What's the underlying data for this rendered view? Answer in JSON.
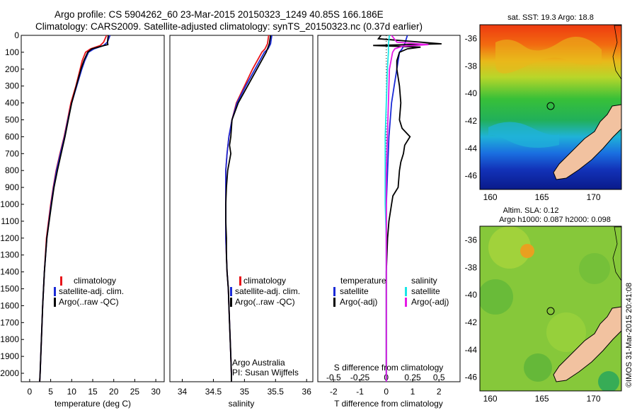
{
  "header": {
    "line1": "Argo profile: CS 5904262_60 23-Mar-2015 20150323_1249 40.85S 166.186E",
    "line2": "Climatology: CARS2009. Satellite-adjusted climatology: synTS_20150323.nc (0.37d earlier)"
  },
  "colors": {
    "climatology": "#e8141a",
    "satellite": "#1a2ad6",
    "argo": "#000000",
    "sat_salinity": "#19e6e6",
    "argo_adj_salinity": "#e619e6",
    "land": "#f2c2a0"
  },
  "chart_data": [
    {
      "type": "line",
      "id": "temperature",
      "xlabel": "temperature (deg C)",
      "xticks": [
        "0",
        "5",
        "10",
        "15",
        "20",
        "25",
        "30"
      ],
      "xlim": [
        -2,
        32
      ],
      "ylim": [
        0,
        2050
      ],
      "yticks": [
        "0",
        "100",
        "200",
        "300",
        "400",
        "500",
        "600",
        "700",
        "800",
        "900",
        "1000",
        "1100",
        "1200",
        "1300",
        "1400",
        "1500",
        "1600",
        "1700",
        "1800",
        "1900",
        "2000"
      ],
      "legend": [
        "climatology",
        "satellite-adj. clim.",
        "Argo(..raw -QC)"
      ],
      "series": [
        {
          "name": "climatology",
          "color": "#e8141a",
          "depth": [
            0,
            40,
            60,
            80,
            100,
            150,
            200,
            300,
            400,
            500,
            600,
            700,
            800,
            900,
            1000,
            1200,
            1400,
            1600,
            1800,
            2000,
            2050
          ],
          "values": [
            18.3,
            17.6,
            16.8,
            14.5,
            13.3,
            12.5,
            12,
            11,
            9.8,
            9,
            8.2,
            7.2,
            6.3,
            5.6,
            5,
            4,
            3.5,
            3.1,
            2.8,
            2.5,
            2.4
          ]
        },
        {
          "name": "satellite-adj. clim.",
          "color": "#1a2ad6",
          "depth": [
            0,
            40,
            60,
            80,
            100,
            150,
            200,
            300,
            400,
            500,
            600,
            700,
            800,
            900,
            1000,
            1200,
            1400,
            1600,
            1800,
            2000,
            2050
          ],
          "values": [
            19.1,
            18.5,
            17.6,
            15.3,
            14,
            13.1,
            12.4,
            11.2,
            10,
            9.1,
            8.3,
            7.3,
            6.4,
            5.7,
            5.1,
            4.1,
            3.5,
            3.1,
            2.8,
            2.5,
            2.4
          ]
        },
        {
          "name": "Argo(..raw -QC)",
          "color": "#000000",
          "depth": [
            0,
            40,
            55,
            60,
            80,
            100,
            150,
            200,
            300,
            400,
            500,
            600,
            700,
            800,
            900,
            1000,
            1200,
            1400,
            1600,
            1800,
            2000,
            2050
          ],
          "values": [
            18.7,
            18.5,
            18.6,
            17.8,
            14.8,
            13.8,
            12.9,
            12.2,
            11.1,
            10,
            9.2,
            8.4,
            7.5,
            6.6,
            5.8,
            5.2,
            4.1,
            3.5,
            3.1,
            2.8,
            2.5,
            2.4
          ]
        }
      ]
    },
    {
      "type": "line",
      "id": "salinity",
      "xlabel": "salinity",
      "xticks": [
        "34",
        "34.5",
        "35",
        "35.5",
        "36"
      ],
      "xlim": [
        33.8,
        36.1
      ],
      "ylim": [
        0,
        2050
      ],
      "legend": [
        "climatology",
        "satellite-adj. clim.",
        "Argo(..raw -QC)"
      ],
      "annotation": [
        "Argo Australia",
        "PI: Susan Wijffels"
      ],
      "series": [
        {
          "name": "climatology",
          "color": "#e8141a",
          "depth": [
            0,
            50,
            80,
            100,
            200,
            300,
            400,
            500,
            600,
            700,
            800,
            900,
            1000,
            1100,
            1200,
            1300,
            1400,
            1500,
            1600,
            1700,
            1800,
            1900,
            2000,
            2050
          ],
          "values": [
            35.39,
            35.37,
            35.33,
            35.28,
            35.13,
            35.0,
            34.87,
            34.8,
            34.75,
            34.72,
            34.7,
            34.7,
            34.7,
            34.7,
            34.7,
            34.71,
            34.72,
            34.74,
            34.75,
            34.76,
            34.77,
            34.78,
            34.79,
            34.79
          ]
        },
        {
          "name": "satellite-adj. clim.",
          "color": "#1a2ad6",
          "depth": [
            0,
            50,
            80,
            100,
            200,
            300,
            400,
            500,
            600,
            700,
            800,
            900,
            1000,
            1100,
            1200,
            1300,
            1400,
            1500,
            1600,
            1700,
            1800,
            1900,
            2000,
            2050
          ],
          "values": [
            35.44,
            35.42,
            35.38,
            35.32,
            35.17,
            35.02,
            34.88,
            34.8,
            34.75,
            34.72,
            34.7,
            34.7,
            34.7,
            34.7,
            34.7,
            34.71,
            34.72,
            34.74,
            34.75,
            34.76,
            34.77,
            34.78,
            34.79,
            34.79
          ]
        },
        {
          "name": "Argo(..raw -QC)",
          "color": "#000000",
          "depth": [
            0,
            50,
            80,
            100,
            200,
            300,
            400,
            500,
            600,
            650,
            700,
            800,
            900,
            1000,
            1100,
            1200,
            1300,
            1400,
            1500,
            1600,
            1700,
            1800,
            1900,
            2000,
            2050
          ],
          "values": [
            35.42,
            35.4,
            35.37,
            35.35,
            35.2,
            35.05,
            34.9,
            34.8,
            34.78,
            34.76,
            34.78,
            34.73,
            34.71,
            34.7,
            34.7,
            34.71,
            34.71,
            34.72,
            34.74,
            34.75,
            34.76,
            34.77,
            34.78,
            34.79,
            34.79
          ]
        }
      ]
    },
    {
      "type": "line",
      "id": "difference",
      "xlabel": "T difference from climatology",
      "xlabel_top": "S difference from climatology",
      "xticks": [
        "-2",
        "-1",
        "0",
        "1",
        "2"
      ],
      "xticks_top": [
        "-0.5",
        "-0.25",
        "0",
        "0.25",
        "0.5"
      ],
      "xlim": [
        -2.6,
        2.8
      ],
      "ylim": [
        0,
        2050
      ],
      "legend_temperature": [
        "temperature",
        "satellite",
        "Argo(-adj)"
      ],
      "legend_salinity": [
        "salinity",
        "satellite",
        "Argo(-adj)"
      ],
      "series": [
        {
          "name": "temperature satellite",
          "color": "#1a2ad6",
          "depth": [
            0,
            50,
            80,
            100,
            200,
            300,
            400,
            600,
            800,
            1000,
            1200,
            1400,
            1600,
            1800,
            2000,
            2050
          ],
          "values": [
            0.8,
            0.7,
            0.6,
            0.5,
            0.4,
            0.3,
            0.2,
            0.1,
            0.05,
            0.0,
            0.0,
            0.0,
            0.0,
            0.0,
            0.0,
            0.0
          ]
        },
        {
          "name": "temperature Argo(-adj)",
          "color": "#000000",
          "depth": [
            0,
            20,
            50,
            60,
            70,
            80,
            100,
            150,
            200,
            300,
            400,
            500,
            550,
            600,
            650,
            700,
            750,
            800,
            900,
            950,
            1000,
            1100,
            1200,
            1400,
            1600,
            1800,
            2000,
            2050
          ],
          "values": [
            -0.2,
            -0.3,
            2.1,
            -0.5,
            1.3,
            0.8,
            0.5,
            0.4,
            0.4,
            0.5,
            0.55,
            0.5,
            0.6,
            0.9,
            0.7,
            0.65,
            0.55,
            0.5,
            0.45,
            0.25,
            0.2,
            0.1,
            0.05,
            0.0,
            0.0,
            0.0,
            0.0,
            0.0
          ]
        },
        {
          "name": "salinity satellite",
          "color": "#19e6e6",
          "depth": [
            0,
            50,
            100,
            200,
            400,
            600,
            800,
            1000,
            1200,
            1400,
            1600,
            1800,
            2000,
            2050
          ],
          "values": [
            0.03,
            0.02,
            0.02,
            0.01,
            0.0,
            -0.01,
            -0.01,
            -0.01,
            0.0,
            0.0,
            0.0,
            0.0,
            0.0,
            0.0
          ]
        },
        {
          "name": "salinity Argo(-adj)",
          "color": "#e619e6",
          "depth": [
            0,
            40,
            55,
            65,
            80,
            100,
            200,
            400,
            600,
            800,
            1000,
            1200,
            1400,
            1600,
            1800,
            2000,
            2050
          ],
          "values": [
            0.05,
            0.1,
            0.4,
            0.15,
            0.08,
            0.06,
            0.03,
            0.02,
            0.01,
            0.0,
            0.0,
            0.0,
            0.0,
            0.0,
            0.0,
            0.0,
            0.0
          ]
        }
      ]
    }
  ],
  "maps": {
    "sst": {
      "title": "sat. SST: 19.3 Argo: 18.8",
      "xticks": [
        "160",
        "165",
        "170"
      ],
      "yticks": [
        "-36",
        "-38",
        "-40",
        "-42",
        "-44",
        "-46"
      ]
    },
    "sla": {
      "title_line1": "Altim. SLA: 0.12",
      "title_line2": "Argo h1000: 0.087 h2000: 0.098",
      "xticks": [
        "160",
        "165",
        "170"
      ],
      "yticks": [
        "-36",
        "-38",
        "-40",
        "-42",
        "-44",
        "-46"
      ]
    }
  },
  "credit": "©IMOS 31-Mar-2015 20:41:08"
}
